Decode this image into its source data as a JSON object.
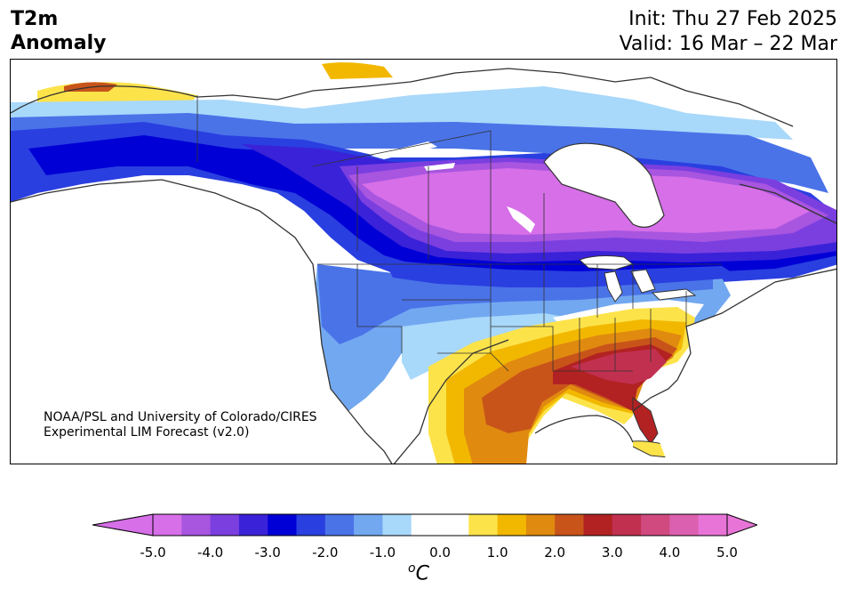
{
  "header": {
    "title_line1": "T2m",
    "title_line2": "Anomaly",
    "init": "Init: Thu 27 Feb 2025",
    "valid": "Valid: 16 Mar – 22 Mar"
  },
  "credit": {
    "line1": "NOAA/PSL and University of Colorado/CIRES",
    "line2": "Experimental LIM Forecast (v2.0)"
  },
  "colorbar": {
    "unit_base": "C",
    "unit_sup": "o",
    "ticks": [
      "-5.0",
      "-4.0",
      "-3.0",
      "-2.0",
      "-1.0",
      "0.0",
      "1.0",
      "2.0",
      "3.0",
      "4.0",
      "5.0"
    ],
    "colors": [
      "#d66fe8",
      "#a855e0",
      "#7b3fe0",
      "#3a22d8",
      "#0000d6",
      "#2a3fe0",
      "#4a73e8",
      "#72a8f0",
      "#a8d8fa",
      "#ffffff",
      "#ffffff",
      "#fde34a",
      "#f2b800",
      "#e08a10",
      "#c8541a",
      "#b22222",
      "#c23050",
      "#d04a80",
      "#dc60b0",
      "#e874d8"
    ],
    "extend_low": "#d66fe8",
    "extend_high": "#e874d8"
  }
}
